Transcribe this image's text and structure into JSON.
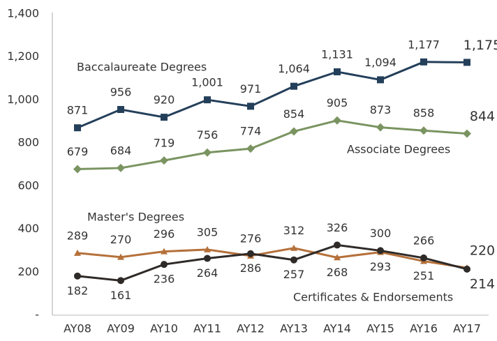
{
  "chart_data": {
    "type": "line",
    "categories": [
      "AY08",
      "AY09",
      "AY10",
      "AY11",
      "AY12",
      "AY13",
      "AY14",
      "AY15",
      "AY16",
      "AY17"
    ],
    "ylim": [
      0,
      1400
    ],
    "yticks": [
      {
        "value": 0,
        "label": "-"
      },
      200,
      400,
      600,
      800,
      {
        "value": 1000,
        "label": "1,000"
      },
      {
        "value": 1200,
        "label": "1,200"
      },
      {
        "value": 1400,
        "label": "1,400"
      }
    ],
    "grid": false,
    "series": [
      {
        "name": "Baccalaureate Degrees",
        "color": "#243f5a",
        "label_color": "#333333",
        "marker": "square",
        "values": [
          871,
          956,
          920,
          1001,
          971,
          1064,
          1131,
          1094,
          1177,
          1175
        ],
        "value_labels": [
          "871",
          "956",
          "920",
          "1,001",
          "971",
          "1,064",
          "1,131",
          "1,094",
          "1,177",
          "1,175"
        ]
      },
      {
        "name": "Associate Degrees",
        "color": "#7a9461",
        "label_color": "#6b7656",
        "marker": "diamond",
        "values": [
          679,
          684,
          719,
          756,
          774,
          854,
          905,
          873,
          858,
          844
        ]
      },
      {
        "name": "Master's Degrees",
        "color": "#b5703a",
        "label_color": "#a8683a",
        "marker": "triangle",
        "values": [
          289,
          270,
          296,
          305,
          276,
          312,
          268,
          293,
          251,
          220
        ]
      },
      {
        "name": "Certificates & Endorsements",
        "color": "#2e2a28",
        "label_color": "#2e2a28",
        "marker": "circle",
        "values": [
          182,
          161,
          236,
          264,
          286,
          257,
          326,
          300,
          266,
          214
        ]
      }
    ]
  }
}
